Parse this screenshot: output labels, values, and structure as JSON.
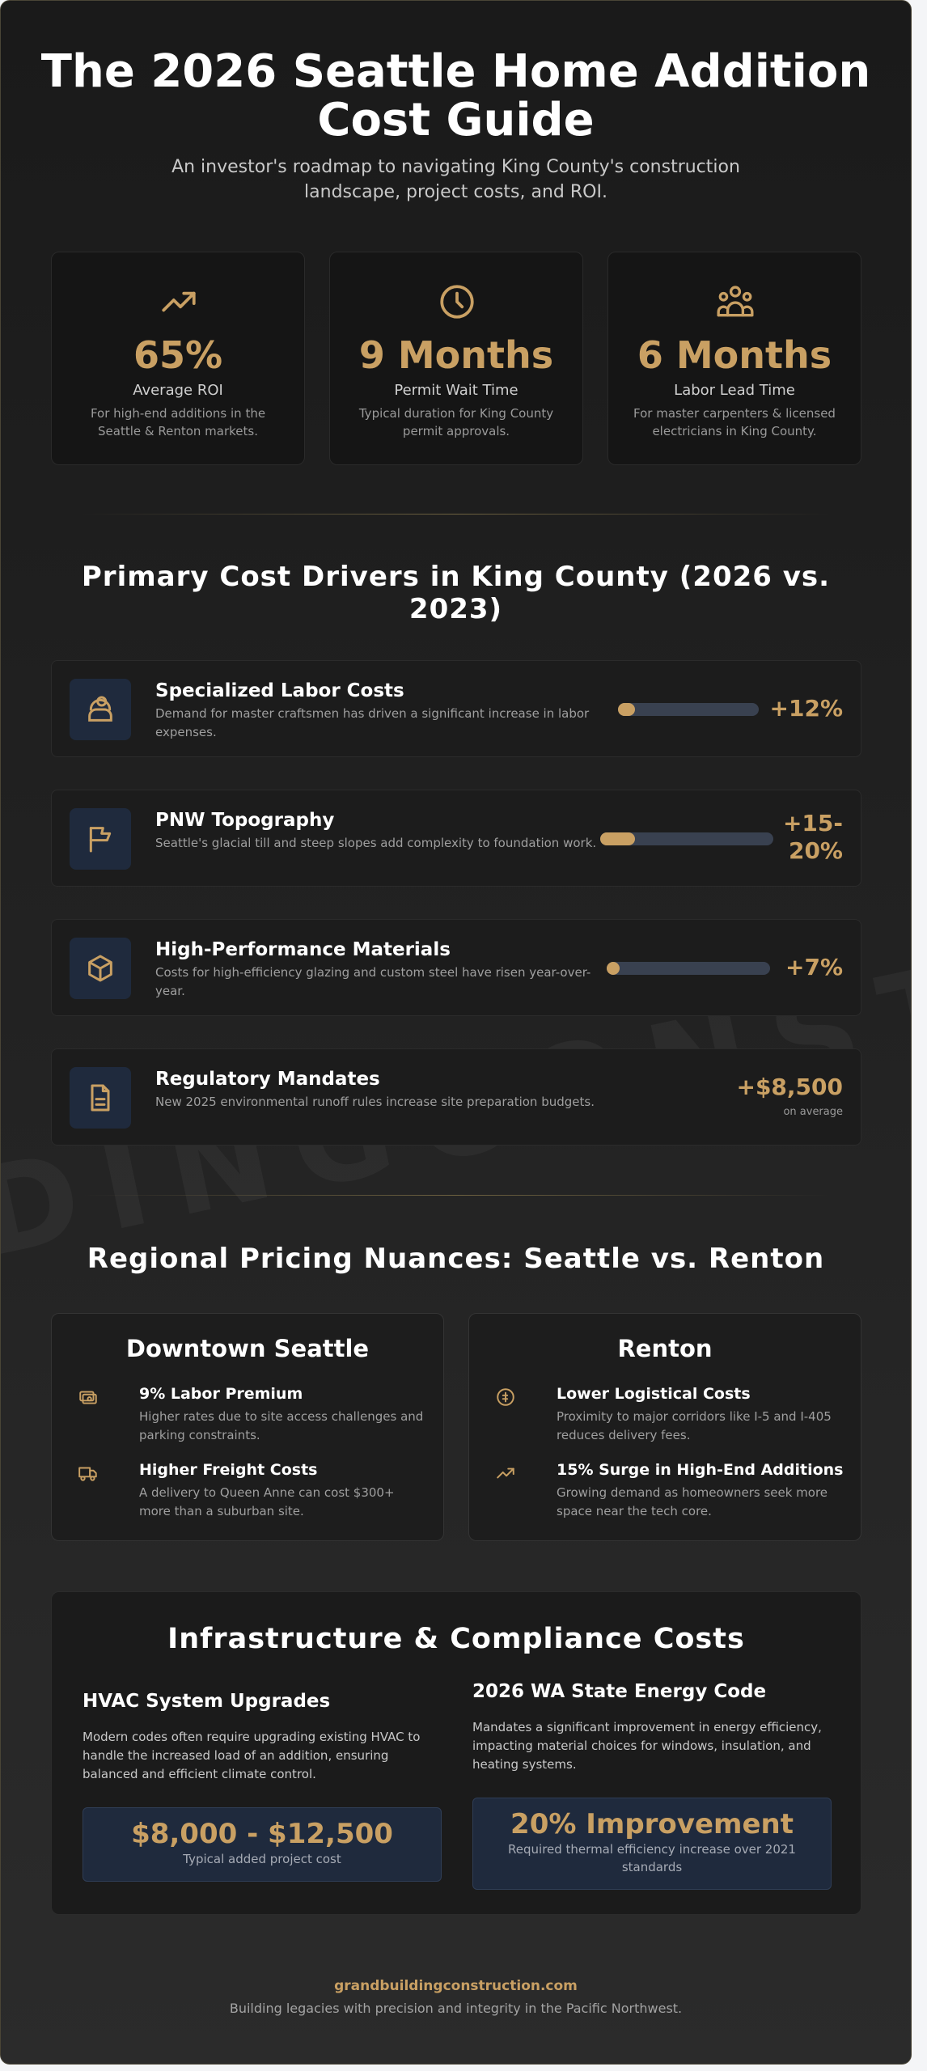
{
  "header": {
    "title": "The 2026 Seattle Home Addition Cost Guide",
    "subtitle": "An investor's roadmap to navigating King County's construction landscape, project costs, and ROI."
  },
  "stats": [
    {
      "value": "65%",
      "label": "Average ROI",
      "desc": "For high-end additions in the Seattle & Renton markets.",
      "icon": "trending-up-icon"
    },
    {
      "value": "9 Months",
      "label": "Permit Wait Time",
      "desc": "Typical duration for King County permit approvals.",
      "icon": "clock-icon"
    },
    {
      "value": "6 Months",
      "label": "Labor Lead Time",
      "desc": "For master carpenters & licensed electricians in King County.",
      "icon": "users-icon"
    }
  ],
  "drivers": {
    "title": "Primary Cost Drivers in King County (2026 vs. 2023)",
    "items": [
      {
        "name": "Specialized Labor Costs",
        "desc": "Demand for master craftsmen has driven a significant increase in labor expenses.",
        "value": "+12%",
        "fill": 0.12,
        "icon": "worker-icon"
      },
      {
        "name": "PNW Topography",
        "desc": "Seattle's glacial till and steep slopes add complexity to foundation work.",
        "value": "+15-20%",
        "fill": 0.2,
        "icon": "flag-icon"
      },
      {
        "name": "High-Performance Materials",
        "desc": "Costs for high-efficiency glazing and custom steel have risen year-over-year.",
        "value": "+7%",
        "fill": 0.07,
        "icon": "box-icon"
      },
      {
        "name": "Regulatory Mandates",
        "desc": "New 2025 environmental runoff rules increase site preparation budgets.",
        "value": "+$8,500",
        "sub": "on average",
        "icon": "document-icon"
      }
    ]
  },
  "regional": {
    "title": "Regional Pricing Nuances: Seattle vs. Renton",
    "seattle": {
      "title": "Downtown Seattle",
      "items": [
        {
          "name": "9% Labor Premium",
          "desc": "Higher rates due to site access challenges and parking constraints.",
          "icon": "cash-icon"
        },
        {
          "name": "Higher Freight Costs",
          "desc": "A delivery to Queen Anne can cost $300+ more than a suburban site.",
          "icon": "truck-icon"
        }
      ]
    },
    "renton": {
      "title": "Renton",
      "items": [
        {
          "name": "Lower Logistical Costs",
          "desc": "Proximity to major corridors like I-5 and I-405 reduces delivery fees.",
          "icon": "coin-icon"
        },
        {
          "name": "15% Surge in High-End Additions",
          "desc": "Growing demand as homeowners seek more space near the tech core.",
          "icon": "trending-up-icon"
        }
      ]
    }
  },
  "infra": {
    "title": "Infrastructure & Compliance Costs",
    "hvac": {
      "name": "HVAC System Upgrades",
      "desc": "Modern codes often require upgrading existing HVAC to handle the increased load of an addition, ensuring balanced and efficient climate control.",
      "value": "$8,000 - $12,500",
      "note": "Typical added project cost"
    },
    "energy": {
      "name": "2026 WA State Energy Code",
      "desc": "Mandates a significant improvement in energy efficiency, impacting material choices for windows, insulation, and heating systems.",
      "value": "20% Improvement",
      "note": "Required thermal efficiency increase over 2021 standards"
    }
  },
  "footer": {
    "link": "grandbuildingconstruction.com",
    "tagline": "Building legacies with precision and integrity in the Pacific Northwest."
  },
  "watermark": "DINGCONSTRU",
  "colors": {
    "accent": "#c9a063",
    "icon_bg": "#1f2a3d",
    "bar_track": "#394150"
  }
}
